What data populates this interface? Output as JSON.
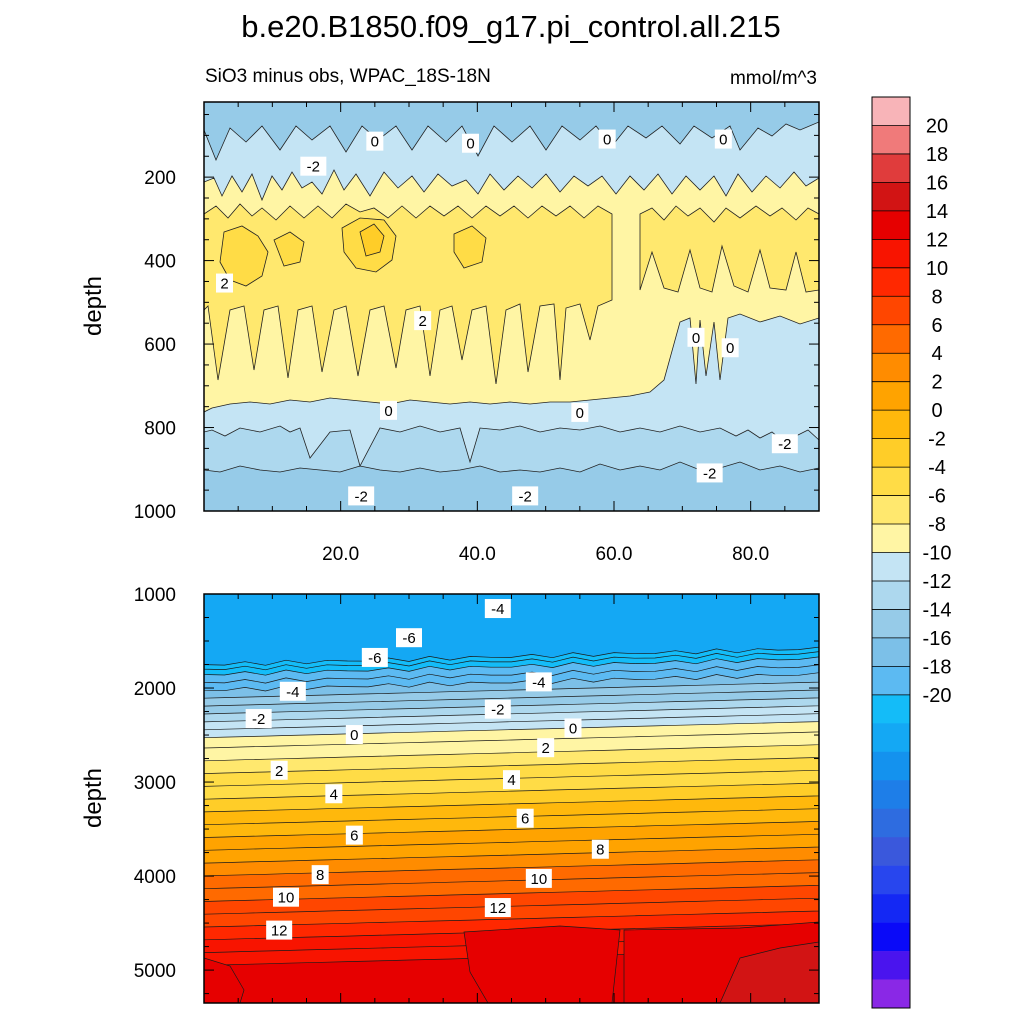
{
  "chart_data": {
    "type": "heatmap",
    "title": "b.e20.B1850.f09_g17.pi_control.all.215",
    "subtitle": "SiO3 minus obs, WPAC_18S-18N",
    "units": "mmol/m^3",
    "colorbar": {
      "levels": [
        -20,
        -18,
        -16,
        -14,
        -12,
        -10,
        -8,
        -6,
        -4,
        -2,
        0,
        2,
        4,
        6,
        8,
        10,
        12,
        14,
        16,
        18,
        20
      ],
      "tick_labels": [
        "20",
        "18",
        "16",
        "14",
        "12",
        "10",
        "8",
        "6",
        "4",
        "2",
        "0",
        "-2",
        "-4",
        "-6",
        "-8",
        "-10",
        "-12",
        "-14",
        "-16",
        "-18",
        "-20"
      ],
      "colors": [
        "#f8b4b8",
        "#f07a7a",
        "#e03c3c",
        "#d21414",
        "#e60000",
        "#f81400",
        "#ff2800",
        "#ff4600",
        "#ff6a00",
        "#ff8c00",
        "#ffa300",
        "#ffb80c",
        "#ffcd28",
        "#ffdc46",
        "#ffe86e",
        "#fff5a4",
        "#c4e4f4",
        "#add8ee",
        "#96cbe8",
        "#7cc0e8",
        "#5cbaf2",
        "#14bcf8",
        "#14a8f4",
        "#1492ee",
        "#1e7ee8",
        "#2e6ce0",
        "#3a58dc",
        "#2846ee",
        "#1428f4",
        "#0a0af8",
        "#4a14ee",
        "#8a28e6"
      ]
    },
    "panels": [
      {
        "name": "upper",
        "ylabel": "depth",
        "xlim": [
          0,
          90
        ],
        "ylim": [
          1000,
          20
        ],
        "x_ticks": [
          "20.0",
          "40.0",
          "60.0",
          "80.0"
        ],
        "y_ticks": [
          "200",
          "400",
          "600",
          "800",
          "1000"
        ],
        "contour_labels": [
          {
            "text": "0",
            "x": 25,
            "y": 115
          },
          {
            "text": "-2",
            "x": 16,
            "y": 175
          },
          {
            "text": "0",
            "x": 39,
            "y": 120
          },
          {
            "text": "0",
            "x": 59,
            "y": 110
          },
          {
            "text": "0",
            "x": 76,
            "y": 110
          },
          {
            "text": "2",
            "x": 3,
            "y": 455
          },
          {
            "text": "2",
            "x": 32,
            "y": 545
          },
          {
            "text": "0",
            "x": 72,
            "y": 585
          },
          {
            "text": "0",
            "x": 77,
            "y": 610
          },
          {
            "text": "0",
            "x": 27,
            "y": 760
          },
          {
            "text": "0",
            "x": 55,
            "y": 765
          },
          {
            "text": "-2",
            "x": 85,
            "y": 840
          },
          {
            "text": "-2",
            "x": 74,
            "y": 910
          },
          {
            "text": "-2",
            "x": 23,
            "y": 965
          },
          {
            "text": "-2",
            "x": 47,
            "y": 965
          }
        ]
      },
      {
        "name": "lower",
        "ylabel": "depth",
        "xlim": [
          0,
          90
        ],
        "ylim": [
          5350,
          1000
        ],
        "y_ticks": [
          "1000",
          "2000",
          "3000",
          "4000",
          "5000"
        ],
        "contour_labels": [
          {
            "text": "-4",
            "x": 43,
            "y": 1160
          },
          {
            "text": "-6",
            "x": 30,
            "y": 1470
          },
          {
            "text": "-6",
            "x": 25,
            "y": 1680
          },
          {
            "text": "-4",
            "x": 13,
            "y": 2040
          },
          {
            "text": "-4",
            "x": 49,
            "y": 1940
          },
          {
            "text": "-2",
            "x": 8,
            "y": 2330
          },
          {
            "text": "-2",
            "x": 43,
            "y": 2230
          },
          {
            "text": "0",
            "x": 22,
            "y": 2500
          },
          {
            "text": "0",
            "x": 54,
            "y": 2430
          },
          {
            "text": "2",
            "x": 11,
            "y": 2880
          },
          {
            "text": "2",
            "x": 50,
            "y": 2640
          },
          {
            "text": "4",
            "x": 19,
            "y": 3130
          },
          {
            "text": "4",
            "x": 45,
            "y": 2980
          },
          {
            "text": "6",
            "x": 22,
            "y": 3570
          },
          {
            "text": "6",
            "x": 47,
            "y": 3390
          },
          {
            "text": "8",
            "x": 17,
            "y": 3990
          },
          {
            "text": "8",
            "x": 58,
            "y": 3720
          },
          {
            "text": "10",
            "x": 12,
            "y": 4230
          },
          {
            "text": "10",
            "x": 49,
            "y": 4030
          },
          {
            "text": "12",
            "x": 43,
            "y": 4340
          },
          {
            "text": "12",
            "x": 11,
            "y": 4580
          }
        ]
      }
    ]
  }
}
